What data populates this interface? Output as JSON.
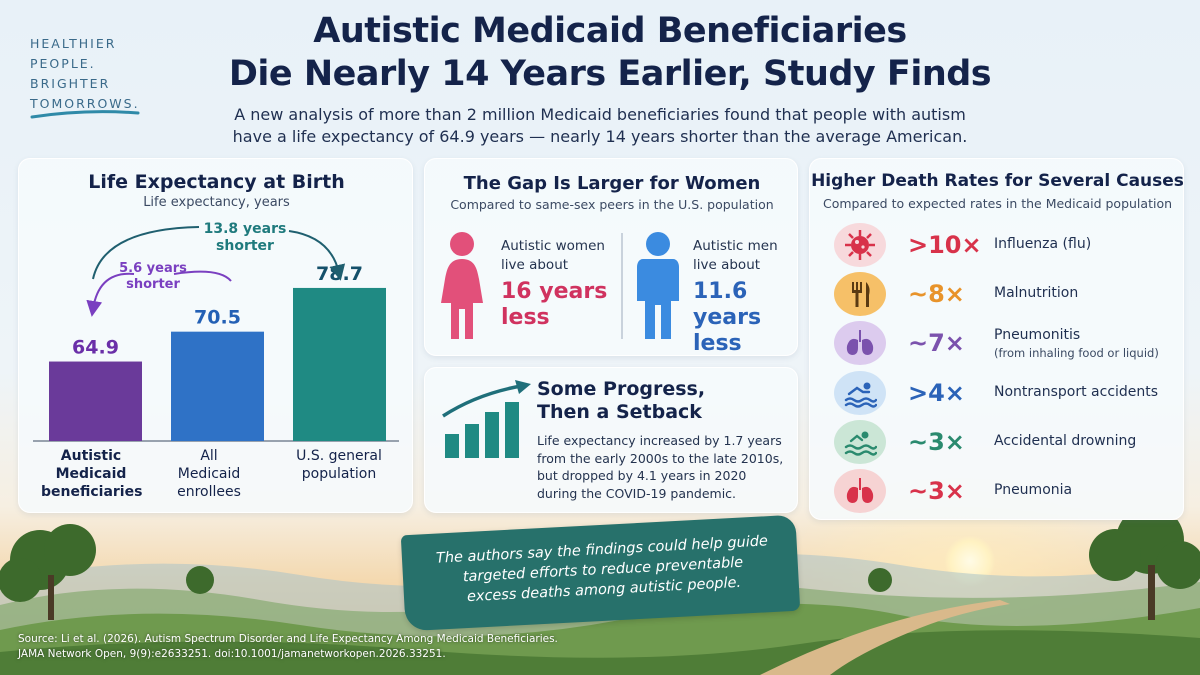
{
  "tagline": [
    "HEALTHIER",
    "PEOPLE.",
    "BRIGHTER",
    "TOMORROWS."
  ],
  "title_line1": "Autistic Medicaid Beneficiaries",
  "title_line2": "Die Nearly 14 Years Earlier, Study Finds",
  "subtitle_line1": "A new analysis of more than 2 million Medicaid beneficiaries found that people with autism",
  "subtitle_line2": "have a life expectancy of 64.9 years — nearly 14 years shorter than the average American.",
  "chart_data": {
    "type": "bar",
    "title": "Life Expectancy at Birth",
    "ylabel": "Life expectancy, years",
    "categories": [
      [
        "Autistic",
        "Medicaid",
        "beneficiaries"
      ],
      [
        "All",
        "Medicaid",
        "enrollees"
      ],
      [
        "U.S. general",
        "population"
      ]
    ],
    "values": [
      64.9,
      70.5,
      78.7
    ],
    "value_labels": [
      "64.9",
      "70.5",
      "78.7"
    ],
    "colors": [
      "#6a3a9a",
      "#2f72c6",
      "#1f8a83"
    ],
    "annotations": [
      {
        "line1": "5.6 years",
        "line2": "shorter",
        "color": "#7a3fc0"
      },
      {
        "line1": "13.8 years",
        "line2": "shorter",
        "color": "#1f7a7d"
      }
    ]
  },
  "women_card": {
    "title": "The Gap Is Larger for Women",
    "subtitle": "Compared to same-sex peers in the U.S. population",
    "women": {
      "intro1": "Autistic women",
      "intro2": "live about",
      "big1": "16 years",
      "big2": "less",
      "color": "#d0325f"
    },
    "men": {
      "intro1": "Autistic men",
      "intro2": "live about",
      "big1": "11.6 years",
      "big2": "less",
      "color": "#2b63b8"
    }
  },
  "progress_card": {
    "title1": "Some Progress,",
    "title2": "Then a Setback",
    "body": [
      "Life expectancy increased by 1.7 years",
      "from the early 2000s to the late 2010s,",
      "but dropped by 4.1 years in 2020",
      "during the COVID-19 pandemic."
    ]
  },
  "causes_card": {
    "title": "Higher Death Rates for Several Causes",
    "subtitle": "Compared to expected rates in the Medicaid population",
    "items": [
      {
        "mult": ">10×",
        "name": "Influenza (flu)",
        "note": "",
        "color": "#d8324a",
        "bg": "#f7d9dc",
        "icon": "virus-icon"
      },
      {
        "mult": "~8×",
        "name": "Malnutrition",
        "note": "",
        "color": "#e8932a",
        "bg": "#f6c068",
        "icon": "fork-knife-icon"
      },
      {
        "mult": "~7×",
        "name": "Pneumonitis",
        "note": "(from inhaling food or liquid)",
        "color": "#7b52ad",
        "bg": "#dccbee",
        "icon": "lungs-icon"
      },
      {
        "mult": ">4×",
        "name": "Nontransport accidents",
        "note": "",
        "color": "#2b63b8",
        "bg": "#cfe3f6",
        "icon": "swimmer-icon"
      },
      {
        "mult": "~3×",
        "name": "Accidental drowning",
        "note": "",
        "color": "#2a8a6e",
        "bg": "#cbe6d6",
        "icon": "drowning-icon"
      },
      {
        "mult": "~3×",
        "name": "Pneumonia",
        "note": "",
        "color": "#d8324a",
        "bg": "#f6d3d3",
        "icon": "lungs-red-icon"
      }
    ]
  },
  "banner": {
    "line1": "The authors say the findings could help guide",
    "line2": "targeted efforts to reduce preventable",
    "line3": "excess deaths among autistic people."
  },
  "source": {
    "line1": "Source: Li et al. (2026). Autism Spectrum Disorder and Life Expectancy Among Medicaid Beneficiaries.",
    "line2": "JAMA Network Open, 9(9):e2633251. doi:10.1001/jamanetworkopen.2026.33251."
  }
}
